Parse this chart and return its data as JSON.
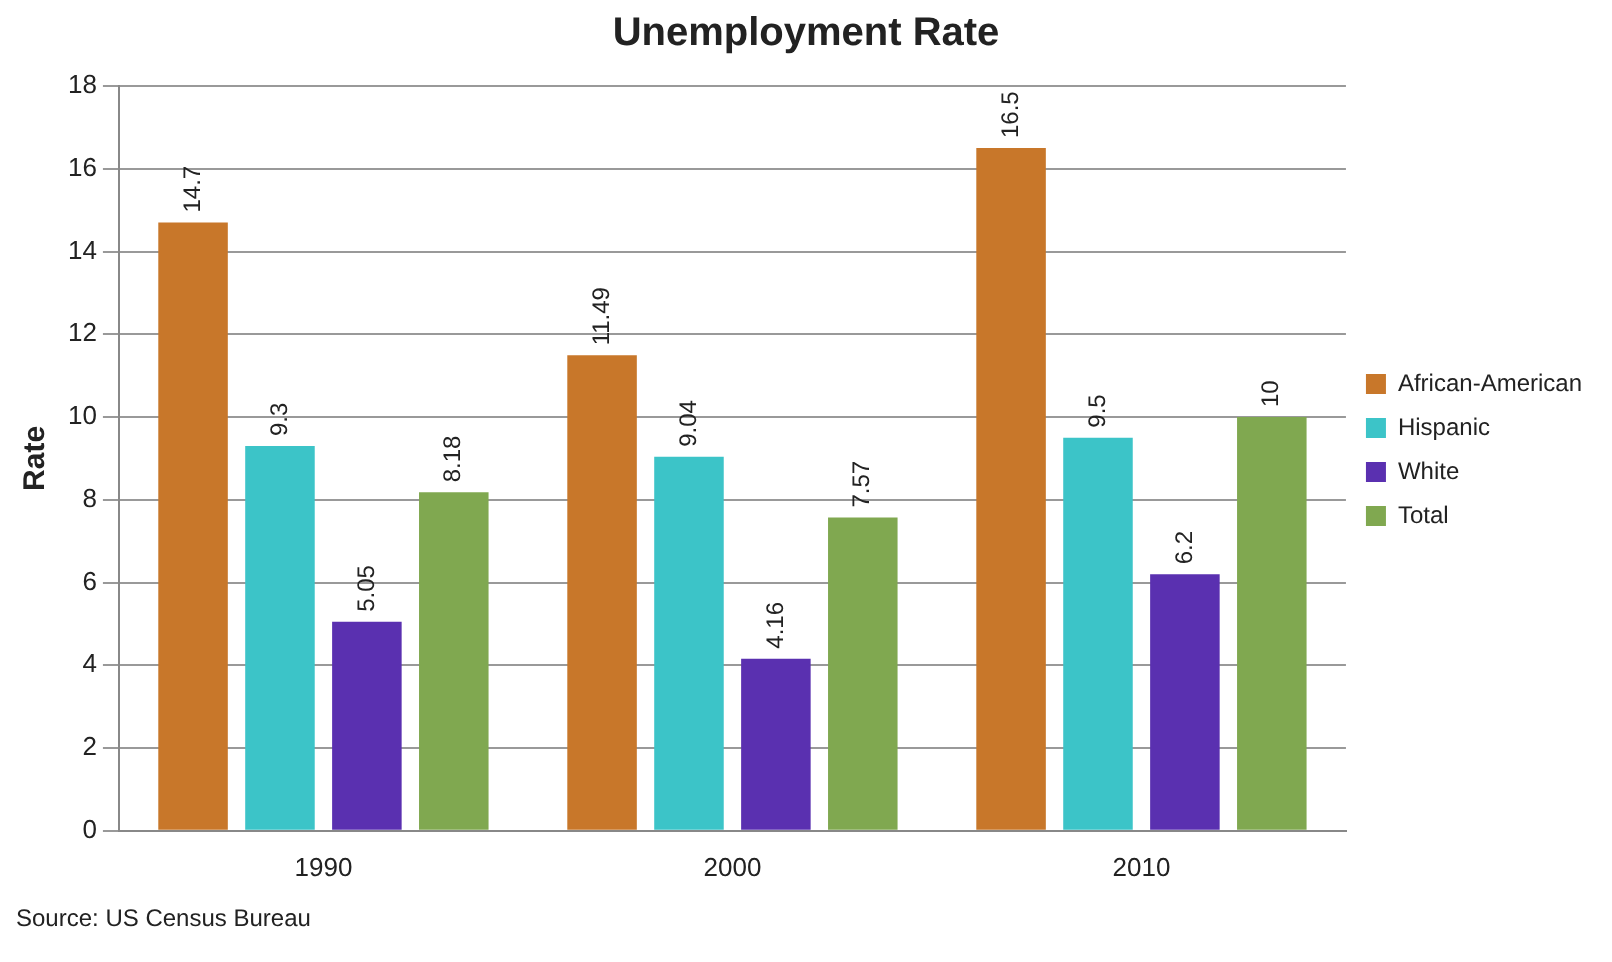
{
  "chart_data": {
    "type": "bar",
    "title": "Unemployment Rate",
    "ylabel": "Rate",
    "categories": [
      "1990",
      "2000",
      "2010"
    ],
    "series": [
      {
        "name": "African-American",
        "color": "#c8772a",
        "values": [
          14.7,
          11.49,
          16.5
        ]
      },
      {
        "name": "Hispanic",
        "color": "#3cc4c8",
        "values": [
          9.3,
          9.04,
          9.5
        ]
      },
      {
        "name": "White",
        "color": "#5a30b0",
        "values": [
          5.05,
          4.16,
          6.2
        ]
      },
      {
        "name": "Total",
        "color": "#80a850",
        "values": [
          8.18,
          7.57,
          10
        ]
      }
    ],
    "ylim": [
      0,
      18
    ],
    "yticks": [
      0,
      2,
      4,
      6,
      8,
      10,
      12,
      14,
      16,
      18
    ],
    "grid": "y",
    "legend": "right",
    "data_labels": true,
    "annotations": [
      "Source: US Census Bureau"
    ]
  }
}
